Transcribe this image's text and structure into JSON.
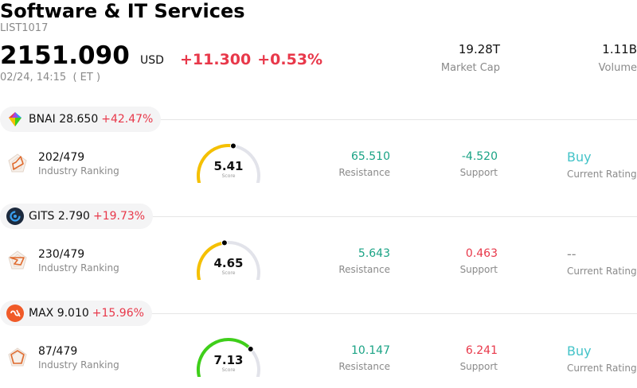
{
  "header": {
    "title": "Software & IT Services",
    "code": "LIST1017",
    "price": "2151.090",
    "currency": "USD",
    "change_abs": "+11.300",
    "change_pct": "+0.53%",
    "time": "02/24, 14:15  ( ET )",
    "market_cap_value": "19.28T",
    "market_cap_label": "Market Cap",
    "volume_value": "1.11B",
    "volume_label": "Volume"
  },
  "stocks": [
    {
      "ticker": "BNAI",
      "price": "28.650",
      "pct": "+42.47%",
      "logo": "prism-logo-icon",
      "rank": "202/479",
      "rank_label": "Industry Ranking",
      "score": "5.41",
      "score_label": "Score",
      "score_fraction": 0.541,
      "resistance": "65.510",
      "resistance_label": "Resistance",
      "support": "-4.520",
      "support_label": "Support",
      "rating": "Buy",
      "rating_label": "Current Rating"
    },
    {
      "ticker": "GITS",
      "price": "2.790",
      "pct": "+19.73%",
      "logo": "swirl-logo-icon",
      "rank": "230/479",
      "rank_label": "Industry Ranking",
      "score": "4.65",
      "score_label": "Score",
      "score_fraction": 0.465,
      "resistance": "5.643",
      "resistance_label": "Resistance",
      "support": "0.463",
      "support_label": "Support",
      "rating": "--",
      "rating_label": "Current Rating"
    },
    {
      "ticker": "MAX",
      "price": "9.010",
      "pct": "+15.96%",
      "logo": "max-logo-icon",
      "rank": "87/479",
      "rank_label": "Industry Ranking",
      "score": "7.13",
      "score_label": "Score",
      "score_fraction": 0.713,
      "resistance": "10.147",
      "resistance_label": "Resistance",
      "support": "6.241",
      "support_label": "Support",
      "rating": "Buy",
      "rating_label": "Current Rating"
    }
  ],
  "colors": {
    "up_red": "#e8384a",
    "resistance_green": "#1aa385",
    "buy_teal": "#43c3c8",
    "gauge_yellow": "#f5c000",
    "gauge_green": "#3fcf1a",
    "gauge_track": "#e2e3ea"
  }
}
